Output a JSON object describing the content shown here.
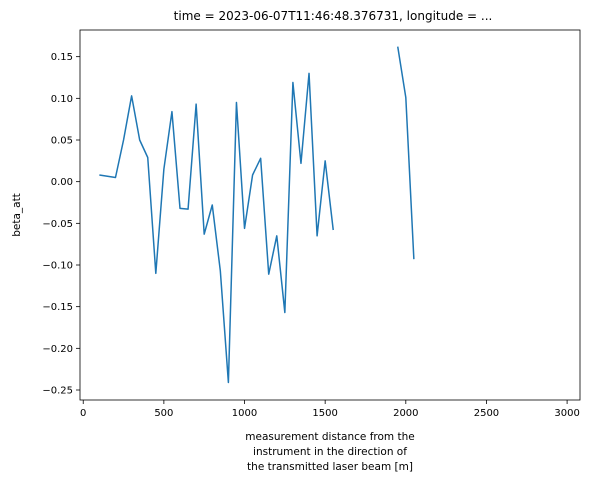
{
  "chart_data": {
    "type": "line",
    "title": "time = 2023-06-07T11:46:48.376731, longitude = ...",
    "xlabel": [
      "measurement distance from the",
      "instrument in the direction of",
      "the transmitted laser beam [m]"
    ],
    "ylabel": "beta_att",
    "xlim": [
      -20,
      3080
    ],
    "ylim": [
      -0.262,
      0.182
    ],
    "xticks": [
      0,
      500,
      1000,
      1500,
      2000,
      2500,
      3000
    ],
    "xtick_labels": [
      "0",
      "500",
      "1000",
      "1500",
      "2000",
      "2500",
      "3000"
    ],
    "yticks": [
      -0.25,
      -0.2,
      -0.15,
      -0.1,
      -0.05,
      0.0,
      0.05,
      0.1,
      0.15
    ],
    "ytick_labels": [
      "−0.25",
      "−0.20",
      "−0.15",
      "−0.10",
      "−0.05",
      "0.00",
      "0.05",
      "0.10",
      "0.15"
    ],
    "grid": false,
    "color": "#1f77b4",
    "series": [
      {
        "segments": [
          [
            [
              100,
              0.008
            ],
            [
              200,
              0.005
            ],
            [
              250,
              0.05
            ],
            [
              300,
              0.103
            ],
            [
              350,
              0.05
            ],
            [
              400,
              0.029
            ],
            [
              450,
              -0.11
            ],
            [
              500,
              0.015
            ],
            [
              550,
              0.084
            ],
            [
              600,
              -0.032
            ],
            [
              650,
              -0.033
            ],
            [
              700,
              0.093
            ],
            [
              750,
              -0.063
            ],
            [
              800,
              -0.028
            ],
            [
              850,
              -0.107
            ],
            [
              900,
              -0.241
            ],
            [
              950,
              0.095
            ],
            [
              1000,
              -0.056
            ],
            [
              1050,
              0.008
            ],
            [
              1100,
              0.028
            ],
            [
              1150,
              -0.111
            ],
            [
              1200,
              -0.065
            ],
            [
              1250,
              -0.157
            ],
            [
              1300,
              0.119
            ],
            [
              1350,
              0.022
            ],
            [
              1400,
              0.13
            ],
            [
              1450,
              -0.065
            ],
            [
              1500,
              0.025
            ],
            [
              1550,
              -0.058
            ]
          ],
          [
            [
              1950,
              0.162
            ],
            [
              2000,
              0.101
            ],
            [
              2050,
              -0.093
            ]
          ]
        ]
      }
    ]
  }
}
